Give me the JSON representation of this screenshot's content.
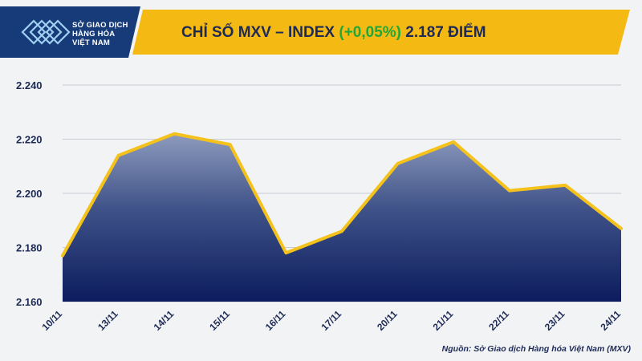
{
  "header": {
    "logo_lines": [
      "SỞ GIAO DỊCH",
      "HÀNG HÓA",
      "VIỆT NAM"
    ],
    "title_prefix": "CHỈ SỐ MXV – INDEX ",
    "title_change": "(+0,05%)",
    "title_suffix": " 2.187 ĐIỂM",
    "colors": {
      "banner": "#f4b913",
      "title": "#1d2a55",
      "change": "#22a83a",
      "logo_bg": "#173b78"
    }
  },
  "chart_data": {
    "type": "area",
    "categories": [
      "10/11",
      "13/11",
      "14/11",
      "15/11",
      "16/11",
      "17/11",
      "20/11",
      "21/11",
      "22/11",
      "23/11",
      "24/11"
    ],
    "values": [
      2177,
      2214,
      2222,
      2218,
      2178,
      2186,
      2211,
      2219,
      2201,
      2203,
      2187
    ],
    "ylim": [
      2160,
      2240
    ],
    "yticks": [
      2160,
      2180,
      2200,
      2220,
      2240
    ],
    "ytick_labels": [
      "2.160",
      "2.180",
      "2.200",
      "2.220",
      "2.240"
    ],
    "grid": true,
    "colors": {
      "line": "#f4c21b",
      "fill_top": "#8d9bbd",
      "fill_bottom": "#0c1c5e"
    }
  },
  "source": "Nguồn: Sở Giao dịch Hàng hóa Việt Nam (MXV)"
}
